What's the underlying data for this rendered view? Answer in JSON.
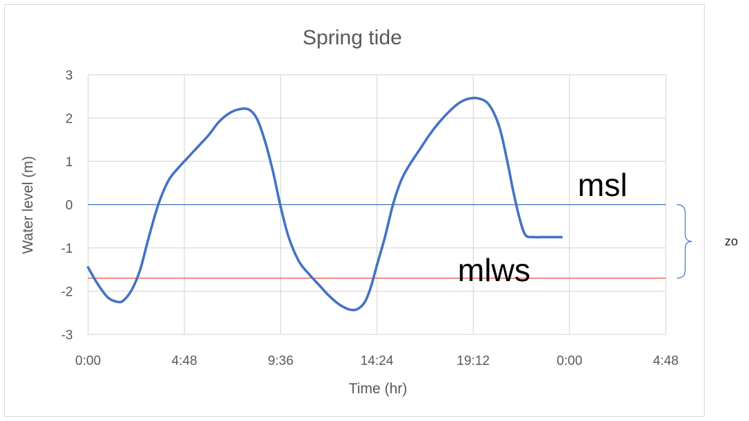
{
  "chart_data": {
    "type": "line",
    "title": "Spring tide",
    "xlabel": "Time (hr)",
    "ylabel": "Water level (m)",
    "x_unit": "hours",
    "x_tick_labels": [
      "0:00",
      "4:48",
      "9:36",
      "14:24",
      "19:12",
      "0:00",
      "4:48"
    ],
    "x_ticks": [
      0,
      4.8,
      9.6,
      14.4,
      19.2,
      24,
      28.8
    ],
    "xlim": [
      0,
      28.8
    ],
    "ylim": [
      -3,
      3
    ],
    "y_ticks": [
      -3,
      -2,
      -1,
      0,
      1,
      2,
      3
    ],
    "grid": true,
    "series": [
      {
        "color": "#4472c4",
        "x": [
          0,
          0.5,
          1.0,
          1.5,
          1.8,
          2.2,
          2.6,
          3.0,
          3.5,
          4.0,
          4.5,
          5.0,
          5.5,
          6.0,
          6.5,
          7.0,
          7.5,
          8.0,
          8.4,
          8.8,
          9.2,
          9.6,
          10.0,
          10.5,
          11.0,
          11.5,
          12.0,
          12.5,
          13.0,
          13.4,
          13.8,
          14.1,
          14.4,
          14.8,
          15.2,
          15.6,
          16.0,
          16.5,
          17.0,
          17.5,
          18.0,
          18.5,
          19.0,
          19.5,
          20.0,
          20.5,
          20.9,
          21.2,
          21.5,
          21.8,
          22.2,
          22.6,
          23.0,
          23.3,
          23.6
        ],
        "y": [
          -1.45,
          -1.85,
          -2.15,
          -2.25,
          -2.2,
          -1.95,
          -1.5,
          -0.8,
          0.0,
          0.55,
          0.85,
          1.1,
          1.35,
          1.6,
          1.9,
          2.1,
          2.2,
          2.2,
          2.0,
          1.5,
          0.8,
          -0.05,
          -0.75,
          -1.3,
          -1.6,
          -1.85,
          -2.1,
          -2.3,
          -2.42,
          -2.42,
          -2.25,
          -1.9,
          -1.4,
          -0.75,
          0.0,
          0.55,
          0.9,
          1.25,
          1.6,
          1.9,
          2.15,
          2.35,
          2.45,
          2.45,
          2.3,
          1.8,
          1.0,
          0.3,
          -0.3,
          -0.7,
          -0.75,
          -0.75,
          -0.75,
          -0.75,
          -0.75
        ]
      }
    ],
    "reference_lines": [
      {
        "y": 0,
        "color": "#4472c4",
        "label": "msl"
      },
      {
        "y": -1.7,
        "color": "#e84c3d",
        "label": "mlws"
      }
    ],
    "bracket": {
      "from": 0,
      "to": -1.7,
      "label": "zo"
    }
  }
}
